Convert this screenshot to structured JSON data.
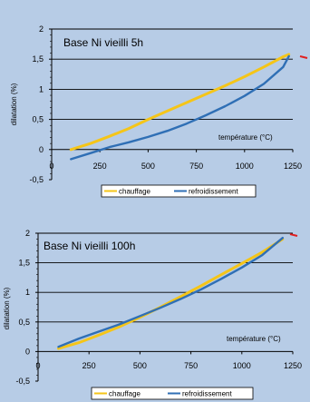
{
  "colors": {
    "background": "#b7cce6",
    "chauffage": "#f5c518",
    "refroidissement": "#2f6fb5",
    "marker": "#e02020"
  },
  "chart_data": [
    {
      "type": "line",
      "title": "Base Ni vieilli 5h",
      "xlabel": "température (°C)",
      "ylabel": "dilatation (%)",
      "xlim": [
        0,
        1250
      ],
      "ylim": [
        -0.5,
        2
      ],
      "xticks": [
        0,
        250,
        500,
        750,
        1000,
        1250
      ],
      "xtick_labels": [
        "0",
        "250",
        "500",
        "750",
        "1000",
        "1250"
      ],
      "yticks": [
        -0.5,
        0,
        0.5,
        1,
        1.5,
        2
      ],
      "ytick_labels": [
        "-0,5",
        "0",
        "0,5",
        "1",
        "1,5",
        "2"
      ],
      "grid": "horizontal",
      "legend": "bottom",
      "series": [
        {
          "name": "chauffage",
          "x": [
            100,
            200,
            300,
            400,
            500,
            600,
            700,
            800,
            900,
            1000,
            1100,
            1200,
            1230
          ],
          "y": [
            0.0,
            0.1,
            0.22,
            0.35,
            0.5,
            0.64,
            0.78,
            0.92,
            1.06,
            1.21,
            1.37,
            1.54,
            1.58
          ]
        },
        {
          "name": "refroidissement",
          "x": [
            100,
            200,
            300,
            400,
            500,
            600,
            700,
            800,
            900,
            1000,
            1100,
            1200,
            1230
          ],
          "y": [
            -0.16,
            -0.06,
            0.04,
            0.12,
            0.21,
            0.31,
            0.43,
            0.57,
            0.72,
            0.89,
            1.09,
            1.37,
            1.55
          ]
        }
      ]
    },
    {
      "type": "line",
      "title": "Base Ni vieilli 100h",
      "xlabel": "température (°C)",
      "ylabel": "dilatation (%)",
      "xlim": [
        0,
        1250
      ],
      "ylim": [
        -0.5,
        2
      ],
      "xticks": [
        0,
        250,
        500,
        750,
        1000,
        1250
      ],
      "xtick_labels": [
        "0",
        "250",
        "500",
        "750",
        "1000",
        "1250"
      ],
      "yticks": [
        -0.5,
        0,
        0.5,
        1,
        1.5,
        2
      ],
      "ytick_labels": [
        "-0,5",
        "0",
        "0,5",
        "1",
        "1,5",
        "2"
      ],
      "grid": "horizontal",
      "legend": "bottom",
      "series": [
        {
          "name": "chauffage",
          "x": [
            100,
            200,
            300,
            400,
            500,
            600,
            700,
            800,
            900,
            1000,
            1100,
            1200
          ],
          "y": [
            0.05,
            0.15,
            0.28,
            0.42,
            0.58,
            0.75,
            0.93,
            1.11,
            1.3,
            1.49,
            1.68,
            1.9
          ]
        },
        {
          "name": "refroidissement",
          "x": [
            100,
            200,
            300,
            400,
            500,
            600,
            700,
            800,
            900,
            1000,
            1100,
            1200
          ],
          "y": [
            0.08,
            0.22,
            0.34,
            0.46,
            0.6,
            0.74,
            0.89,
            1.05,
            1.23,
            1.42,
            1.63,
            1.92
          ]
        }
      ]
    }
  ]
}
